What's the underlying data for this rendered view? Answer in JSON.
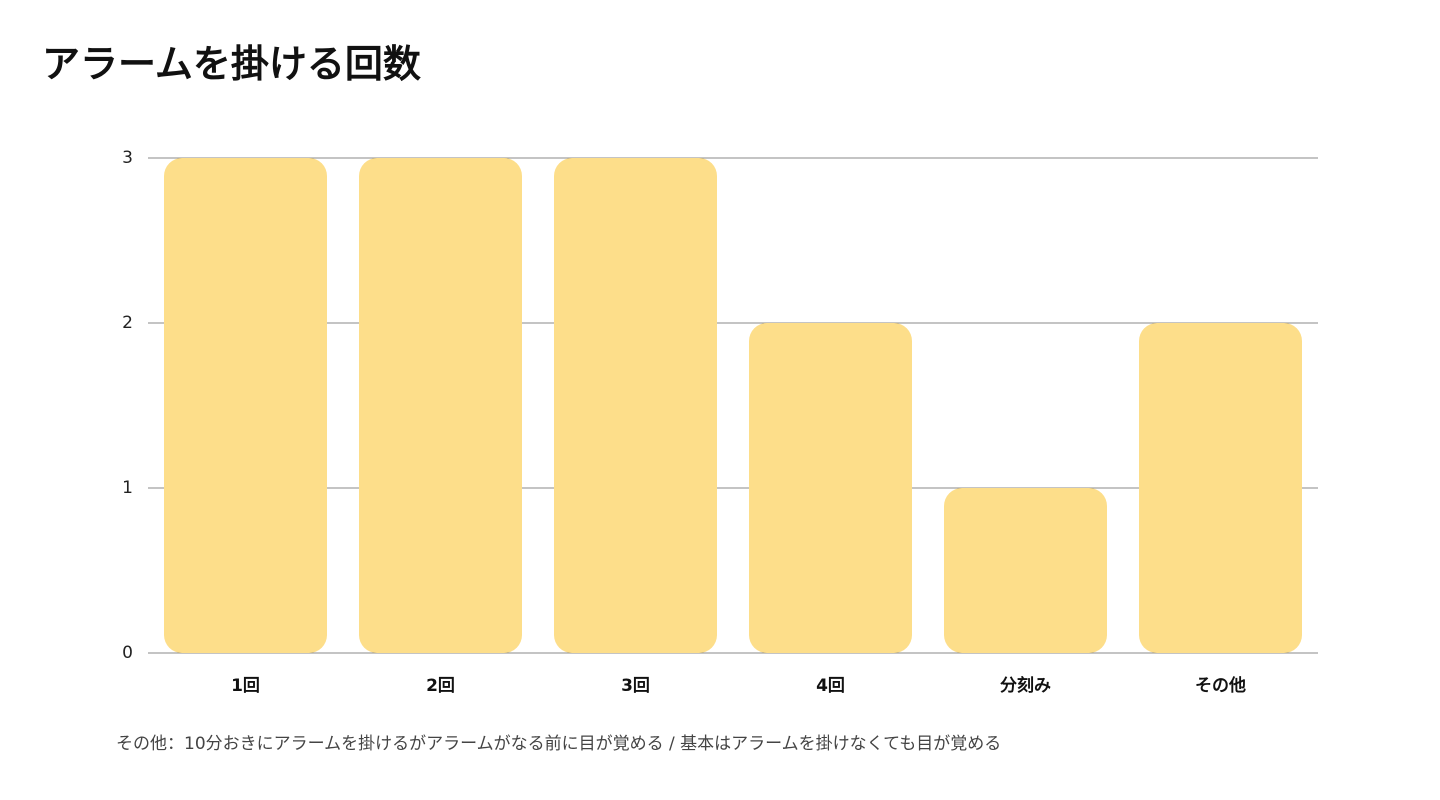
{
  "title": "アラームを掛ける回数",
  "footnote": "その他：10分おきにアラームを掛けるがアラームがなる前に目が覚める / 基本はアラームを掛けなくても目が覚める",
  "colors": {
    "bar": "#FDDE8A",
    "grid": "#888888",
    "background": "#FFFFFF"
  },
  "chart_data": {
    "type": "bar",
    "title": "アラームを掛ける回数",
    "categories": [
      "1回",
      "2回",
      "3回",
      "4回",
      "分刻み",
      "その他"
    ],
    "values": [
      3,
      3,
      3,
      2,
      1,
      2
    ],
    "yticks": [
      "0",
      "1",
      "2",
      "3"
    ],
    "ylim": [
      0,
      3
    ],
    "xlabel": "",
    "ylabel": "",
    "grid": true,
    "legend": "none"
  }
}
